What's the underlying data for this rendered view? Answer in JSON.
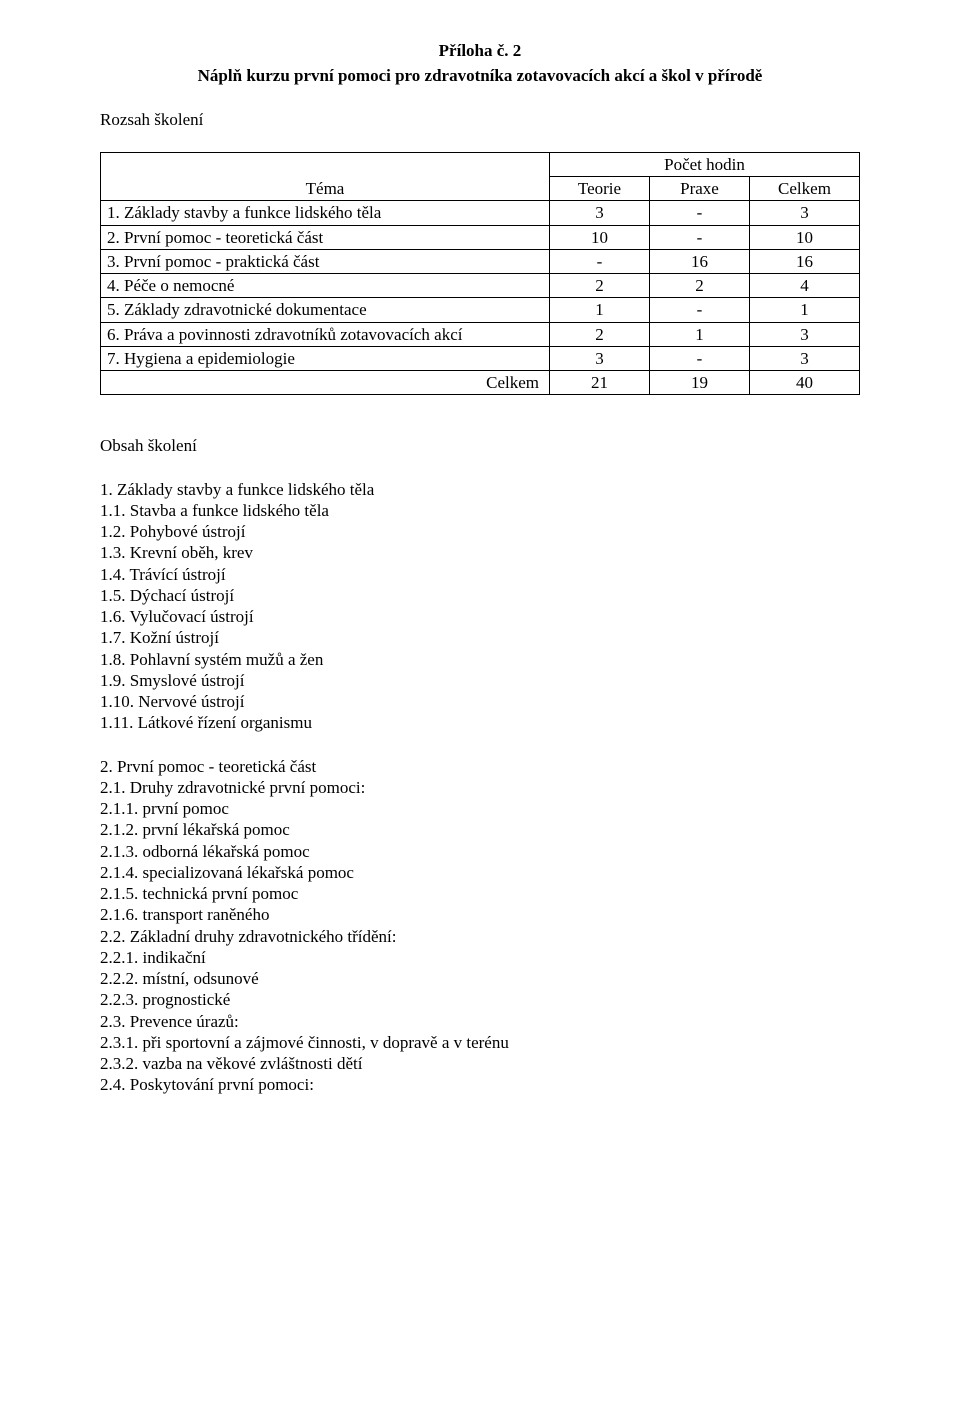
{
  "header": {
    "title": "Příloha č. 2",
    "subtitle": "Náplň kurzu první pomoci pro zdravotníka zotavovacích akcí a škol v přírodě"
  },
  "rozsah_label": "Rozsah školení",
  "table": {
    "header_span": "Počet hodin",
    "columns": {
      "tema": "Téma",
      "teorie": "Teorie",
      "praxe": "Praxe",
      "celkem": "Celkem"
    },
    "rows": [
      {
        "label": "1. Základy stavby a funkce lidského těla",
        "teorie": "3",
        "praxe": "-",
        "celkem": "3"
      },
      {
        "label": "2. První pomoc - teoretická část",
        "teorie": "10",
        "praxe": "-",
        "celkem": "10"
      },
      {
        "label": "3. První pomoc - praktická část",
        "teorie": "-",
        "praxe": "16",
        "celkem": "16"
      },
      {
        "label": "4. Péče o nemocné",
        "teorie": "2",
        "praxe": "2",
        "celkem": "4"
      },
      {
        "label": "5. Základy zdravotnické dokumentace",
        "teorie": "1",
        "praxe": "-",
        "celkem": "1"
      },
      {
        "label": "6. Práva a povinnosti zdravotníků zotavovacích akcí",
        "teorie": "2",
        "praxe": "1",
        "celkem": "3"
      },
      {
        "label": "7. Hygiena a epidemiologie",
        "teorie": "3",
        "praxe": "-",
        "celkem": "3"
      }
    ],
    "total": {
      "label": "Celkem",
      "teorie": "21",
      "praxe": "19",
      "celkem": "40"
    }
  },
  "obsah_label": "Obsah školení",
  "section1": {
    "title": "1. Základy stavby a funkce lidského těla",
    "items": [
      "1.1. Stavba a funkce lidského těla",
      "1.2. Pohybové ústrojí",
      "1.3. Krevní oběh, krev",
      "1.4. Trávící ústrojí",
      "1.5. Dýchací ústrojí",
      "1.6. Vylučovací ústrojí",
      "1.7. Kožní ústrojí",
      "1.8. Pohlavní systém mužů a žen",
      "1.9. Smyslové ústrojí",
      "1.10. Nervové ústrojí",
      "1.11. Látkové řízení organismu"
    ]
  },
  "section2": {
    "items": [
      "2. První pomoc - teoretická část",
      "2.1. Druhy zdravotnické první pomoci:",
      "2.1.1. první pomoc",
      "2.1.2. první lékařská pomoc",
      "2.1.3. odborná lékařská pomoc",
      "2.1.4. specializovaná lékařská pomoc",
      "2.1.5. technická první pomoc",
      "2.1.6. transport raněného",
      "2.2. Základní druhy zdravotnického třídění:",
      "2.2.1. indikační",
      "2.2.2. místní, odsunové",
      "2.2.3. prognostické",
      "2.3. Prevence úrazů:",
      "2.3.1. při sportovní a zájmové činnosti, v dopravě a v terénu",
      "2.3.2. vazba na věkové zvláštnosti dětí",
      "2.4. Poskytování první pomoci:"
    ]
  }
}
